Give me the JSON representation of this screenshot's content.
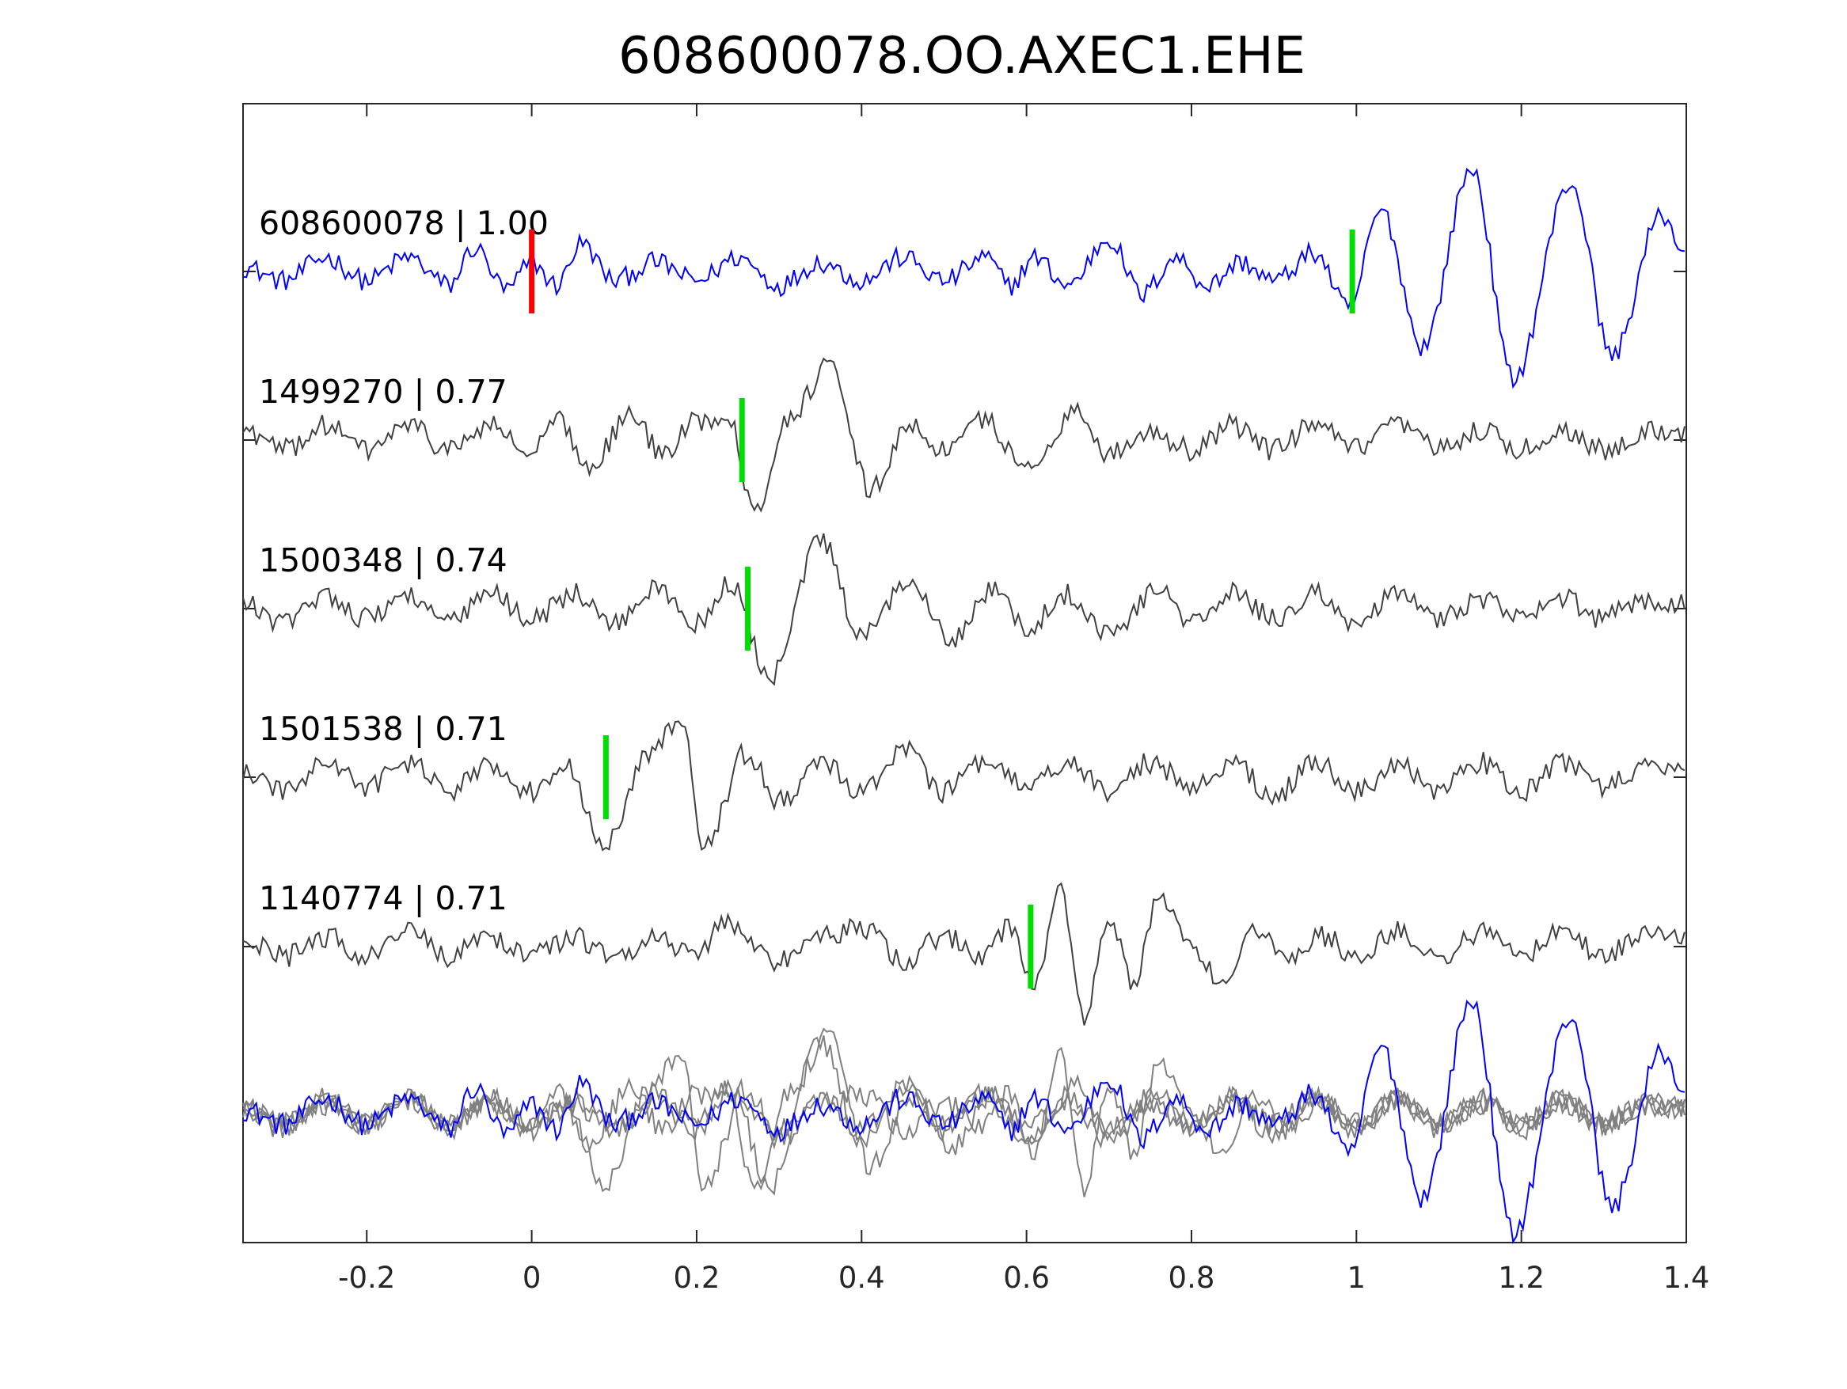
{
  "chart_data": {
    "type": "line",
    "title": "608600078.OO.AXEC1.EHE",
    "xlabel": "",
    "ylabel": "",
    "xlim": [
      -0.35,
      1.4
    ],
    "x_ticks": [
      -0.2,
      0,
      0.2,
      0.4,
      0.6,
      0.8,
      1,
      1.2,
      1.4
    ],
    "x_tick_labels": [
      "-0.2",
      "0",
      "0.2",
      "0.4",
      "0.6",
      "0.8",
      "1",
      "1.2",
      "1.4"
    ],
    "grid": false,
    "legend": "none",
    "colors": {
      "template": "#0000ff",
      "match": "#404040",
      "overlay_gray": "#808080",
      "origin_marker": "#ff0000",
      "pick_marker": "#00dd00",
      "axes": "#262626"
    },
    "traces": [
      {
        "label": "608600078 | 1.00",
        "id": "608600078",
        "cc": "1.00",
        "color": "#0000ff",
        "pick_time": 0.995,
        "origin_time": 0.0,
        "features": [
          [
            -0.35,
            0.1
          ],
          [
            -0.3,
            -0.2
          ],
          [
            -0.25,
            0.3
          ],
          [
            -0.2,
            -0.2
          ],
          [
            -0.15,
            0.3
          ],
          [
            -0.1,
            -0.3
          ],
          [
            -0.07,
            0.5
          ],
          [
            -0.03,
            -0.4
          ],
          [
            0.0,
            0.2
          ],
          [
            0.03,
            -0.3
          ],
          [
            0.06,
            0.6
          ],
          [
            0.1,
            -0.2
          ],
          [
            0.15,
            0.2
          ],
          [
            0.2,
            -0.2
          ],
          [
            0.25,
            0.3
          ],
          [
            0.3,
            -0.3
          ],
          [
            0.35,
            0.2
          ],
          [
            0.4,
            -0.2
          ],
          [
            0.45,
            0.3
          ],
          [
            0.5,
            -0.2
          ],
          [
            0.55,
            0.3
          ],
          [
            0.58,
            -0.3
          ],
          [
            0.61,
            0.3
          ],
          [
            0.65,
            -0.3
          ],
          [
            0.7,
            0.7
          ],
          [
            0.74,
            -0.5
          ],
          [
            0.78,
            0.3
          ],
          [
            0.82,
            -0.3
          ],
          [
            0.86,
            0.2
          ],
          [
            0.9,
            -0.2
          ],
          [
            0.95,
            0.4
          ],
          [
            0.99,
            -0.8
          ],
          [
            1.03,
            1.3
          ],
          [
            1.08,
            -1.6
          ],
          [
            1.14,
            2.2
          ],
          [
            1.19,
            -2.3
          ],
          [
            1.26,
            1.9
          ],
          [
            1.31,
            -1.8
          ],
          [
            1.37,
            1.2
          ],
          [
            1.4,
            0.4
          ]
        ]
      },
      {
        "label": "1499270 | 0.77",
        "id": "1499270",
        "cc": "0.77",
        "color": "#404040",
        "pick_time": 0.255,
        "features": [
          [
            -0.35,
            0.2
          ],
          [
            -0.3,
            -0.2
          ],
          [
            -0.25,
            0.3
          ],
          [
            -0.2,
            -0.2
          ],
          [
            -0.15,
            0.3
          ],
          [
            -0.1,
            -0.2
          ],
          [
            -0.05,
            0.3
          ],
          [
            0.0,
            -0.3
          ],
          [
            0.03,
            0.4
          ],
          [
            0.07,
            -0.5
          ],
          [
            0.12,
            0.5
          ],
          [
            0.16,
            -0.3
          ],
          [
            0.2,
            0.4
          ],
          [
            0.24,
            0.5
          ],
          [
            0.27,
            -1.5
          ],
          [
            0.31,
            0.4
          ],
          [
            0.36,
            1.5
          ],
          [
            0.41,
            -1.0
          ],
          [
            0.46,
            0.3
          ],
          [
            0.5,
            -0.2
          ],
          [
            0.55,
            0.4
          ],
          [
            0.6,
            -0.6
          ],
          [
            0.66,
            0.6
          ],
          [
            0.7,
            -0.3
          ],
          [
            0.75,
            0.2
          ],
          [
            0.8,
            -0.2
          ],
          [
            0.85,
            0.3
          ],
          [
            0.9,
            -0.2
          ],
          [
            0.95,
            0.3
          ],
          [
            1.0,
            -0.2
          ],
          [
            1.05,
            0.3
          ],
          [
            1.1,
            -0.2
          ],
          [
            1.15,
            0.2
          ],
          [
            1.2,
            -0.2
          ],
          [
            1.25,
            0.2
          ],
          [
            1.3,
            -0.2
          ],
          [
            1.35,
            0.2
          ],
          [
            1.4,
            0.1
          ]
        ]
      },
      {
        "label": "1500348 | 0.74",
        "id": "1500348",
        "cc": "0.74",
        "color": "#404040",
        "pick_time": 0.262,
        "features": [
          [
            -0.35,
            0.1
          ],
          [
            -0.3,
            -0.3
          ],
          [
            -0.25,
            0.3
          ],
          [
            -0.2,
            -0.2
          ],
          [
            -0.15,
            0.3
          ],
          [
            -0.1,
            -0.3
          ],
          [
            -0.05,
            0.3
          ],
          [
            0.0,
            -0.2
          ],
          [
            0.05,
            0.3
          ],
          [
            0.1,
            -0.3
          ],
          [
            0.15,
            0.4
          ],
          [
            0.2,
            -0.3
          ],
          [
            0.24,
            0.5
          ],
          [
            0.29,
            -1.4
          ],
          [
            0.35,
            1.4
          ],
          [
            0.4,
            -0.6
          ],
          [
            0.46,
            0.6
          ],
          [
            0.51,
            -0.6
          ],
          [
            0.56,
            0.4
          ],
          [
            0.6,
            -0.4
          ],
          [
            0.65,
            0.3
          ],
          [
            0.7,
            -0.5
          ],
          [
            0.76,
            0.4
          ],
          [
            0.8,
            -0.3
          ],
          [
            0.85,
            0.3
          ],
          [
            0.9,
            -0.2
          ],
          [
            0.95,
            0.3
          ],
          [
            1.0,
            -0.3
          ],
          [
            1.05,
            0.3
          ],
          [
            1.1,
            -0.2
          ],
          [
            1.15,
            0.2
          ],
          [
            1.2,
            -0.2
          ],
          [
            1.25,
            0.2
          ],
          [
            1.3,
            -0.2
          ],
          [
            1.35,
            0.2
          ],
          [
            1.4,
            0.1
          ]
        ]
      },
      {
        "label": "1501538 | 0.71",
        "id": "1501538",
        "cc": "0.71",
        "color": "#404040",
        "pick_time": 0.09,
        "features": [
          [
            -0.35,
            0.1
          ],
          [
            -0.3,
            -0.3
          ],
          [
            -0.25,
            0.3
          ],
          [
            -0.2,
            -0.2
          ],
          [
            -0.15,
            0.3
          ],
          [
            -0.1,
            -0.3
          ],
          [
            -0.05,
            0.3
          ],
          [
            0.0,
            -0.3
          ],
          [
            0.04,
            0.3
          ],
          [
            0.09,
            -1.4
          ],
          [
            0.14,
            0.4
          ],
          [
            0.18,
            1.2
          ],
          [
            0.21,
            -1.4
          ],
          [
            0.26,
            0.5
          ],
          [
            0.3,
            -0.5
          ],
          [
            0.35,
            0.3
          ],
          [
            0.4,
            -0.3
          ],
          [
            0.45,
            0.6
          ],
          [
            0.5,
            -0.3
          ],
          [
            0.55,
            0.3
          ],
          [
            0.6,
            -0.2
          ],
          [
            0.65,
            0.3
          ],
          [
            0.7,
            -0.3
          ],
          [
            0.75,
            0.3
          ],
          [
            0.8,
            -0.2
          ],
          [
            0.85,
            0.3
          ],
          [
            0.9,
            -0.4
          ],
          [
            0.95,
            0.3
          ],
          [
            1.0,
            -0.3
          ],
          [
            1.05,
            0.3
          ],
          [
            1.1,
            -0.3
          ],
          [
            1.15,
            0.3
          ],
          [
            1.2,
            -0.3
          ],
          [
            1.25,
            0.3
          ],
          [
            1.3,
            -0.2
          ],
          [
            1.35,
            0.2
          ],
          [
            1.4,
            0.1
          ]
        ]
      },
      {
        "label": "1140774 | 0.71",
        "id": "1140774",
        "cc": "0.71",
        "color": "#404040",
        "pick_time": 0.605,
        "features": [
          [
            -0.35,
            0.1
          ],
          [
            -0.3,
            -0.2
          ],
          [
            -0.25,
            0.2
          ],
          [
            -0.2,
            -0.2
          ],
          [
            -0.15,
            0.3
          ],
          [
            -0.1,
            -0.2
          ],
          [
            -0.05,
            0.2
          ],
          [
            0.0,
            -0.2
          ],
          [
            0.05,
            0.2
          ],
          [
            0.1,
            -0.2
          ],
          [
            0.15,
            0.2
          ],
          [
            0.2,
            -0.2
          ],
          [
            0.23,
            0.5
          ],
          [
            0.3,
            -0.3
          ],
          [
            0.35,
            0.2
          ],
          [
            0.4,
            0.4
          ],
          [
            0.45,
            -0.3
          ],
          [
            0.5,
            0.2
          ],
          [
            0.55,
            -0.2
          ],
          [
            0.58,
            0.4
          ],
          [
            0.61,
            -0.8
          ],
          [
            0.64,
            1.2
          ],
          [
            0.67,
            -1.4
          ],
          [
            0.7,
            0.6
          ],
          [
            0.73,
            -0.8
          ],
          [
            0.76,
            1.0
          ],
          [
            0.8,
            0.0
          ],
          [
            0.84,
            -0.9
          ],
          [
            0.88,
            0.4
          ],
          [
            0.92,
            -0.2
          ],
          [
            0.96,
            0.2
          ],
          [
            1.0,
            -0.2
          ],
          [
            1.05,
            0.3
          ],
          [
            1.1,
            -0.2
          ],
          [
            1.15,
            0.3
          ],
          [
            1.2,
            -0.2
          ],
          [
            1.25,
            0.3
          ],
          [
            1.3,
            -0.2
          ],
          [
            1.35,
            0.3
          ],
          [
            1.4,
            0.1
          ]
        ]
      }
    ],
    "overlay": {
      "description_series": "stack of all traces aligned on picks",
      "template_color": "#0000ff",
      "others_color": "#808080"
    }
  }
}
